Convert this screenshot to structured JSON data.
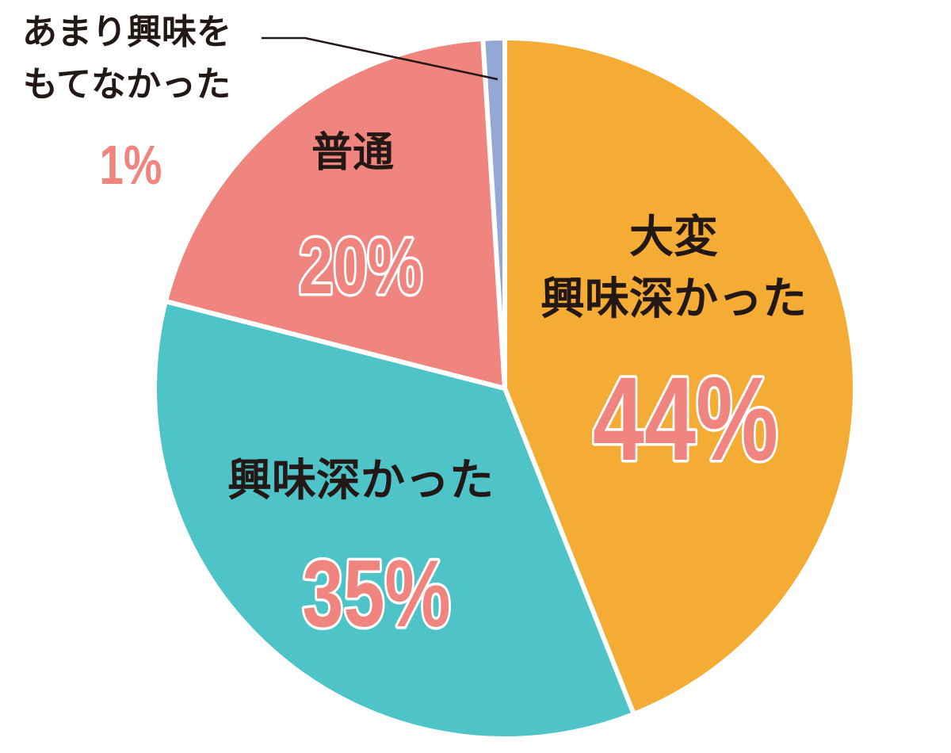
{
  "chart_data": {
    "type": "pie",
    "categories": [
      "大変\n興味深かった",
      "興味深かった",
      "普通",
      "あまり興味を\nもてなかった"
    ],
    "values": [
      44,
      35,
      20,
      1
    ],
    "value_labels": [
      "44%",
      "35%",
      "20%",
      "1%"
    ],
    "colors": [
      "#f5ac35",
      "#4fc4c8",
      "#ef857e",
      "#94a8d6"
    ]
  }
}
